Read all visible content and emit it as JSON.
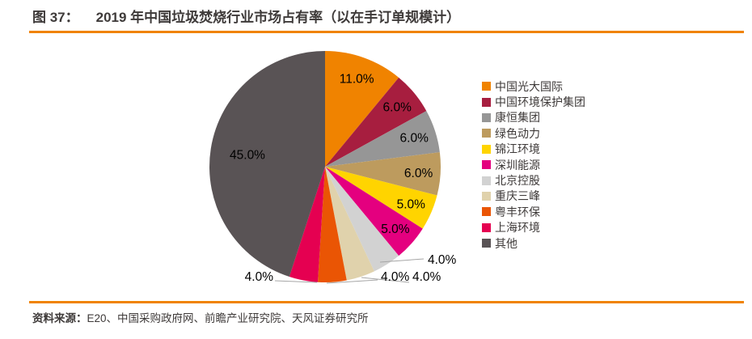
{
  "title": {
    "prefix": "图 37：",
    "text": "2019 年中国垃圾焚烧行业市场占有率（以在手订单规模计）"
  },
  "source": {
    "prefix": "资料来源：",
    "text": "E20、中国采购政府网、前瞻产业研究院、天风证券研究所"
  },
  "colors": {
    "accent": "#f08300",
    "text": "#3e3a39",
    "leader_line": "#a6a6a6",
    "label_text": "#000000"
  },
  "chart_data": {
    "type": "pie",
    "title": "2019 年中国垃圾焚烧行业市场占有率（以在手订单规模计）",
    "unit": "percent",
    "start_angle_deg": 0,
    "direction": "clockwise",
    "legend_position": "right",
    "series": [
      {
        "name": "中国光大国际",
        "value": 11.0,
        "color": "#f08300"
      },
      {
        "name": "中国环境保护集团",
        "value": 6.0,
        "color": "#a71e3f"
      },
      {
        "name": "康恒集团",
        "value": 6.0,
        "color": "#969696"
      },
      {
        "name": "绿色动力",
        "value": 6.0,
        "color": "#bd9b5e"
      },
      {
        "name": "锦江环境",
        "value": 5.0,
        "color": "#ffd400"
      },
      {
        "name": "深圳能源",
        "value": 5.0,
        "color": "#e4007f"
      },
      {
        "name": "北京控股",
        "value": 4.0,
        "color": "#d2d2d2"
      },
      {
        "name": "重庆三峰",
        "value": 4.0,
        "color": "#e0d2ac"
      },
      {
        "name": "粤丰环保",
        "value": 4.0,
        "color": "#ea5504"
      },
      {
        "name": "上海环境",
        "value": 4.0,
        "color": "#e50051"
      },
      {
        "name": "其他",
        "value": 45.0,
        "color": "#595355"
      }
    ]
  }
}
